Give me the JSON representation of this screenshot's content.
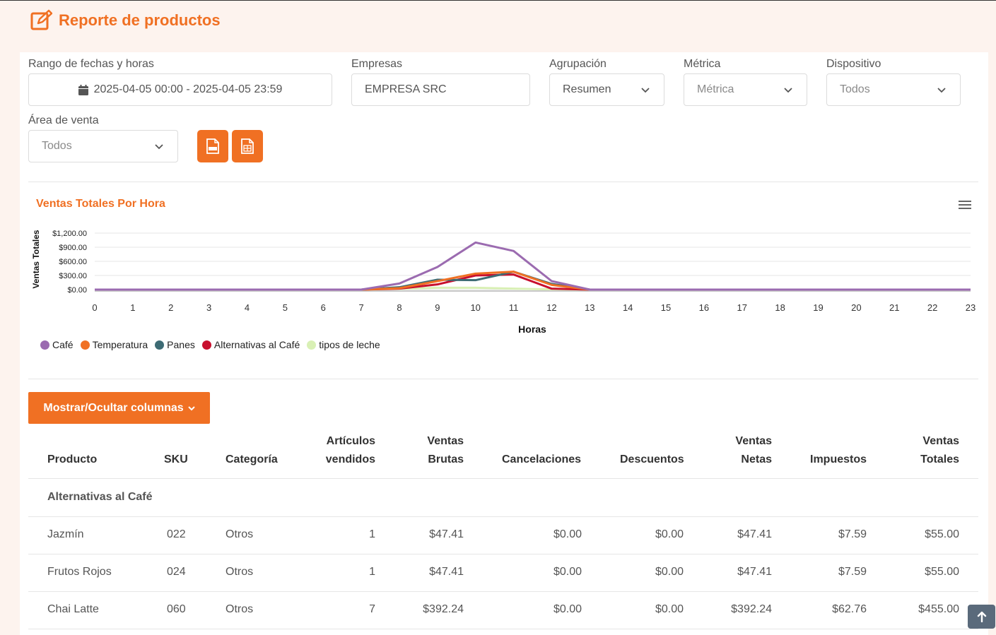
{
  "header": {
    "title": "Reporte de productos",
    "icon": "edit-icon"
  },
  "filters": {
    "date_range": {
      "label": "Rango de fechas y horas",
      "value": "2025-04-05 00:00 - 2025-04-05 23:59"
    },
    "empresas": {
      "label": "Empresas",
      "value": "EMPRESA SRC"
    },
    "agrupacion": {
      "label": "Agrupación",
      "value": "Resumen"
    },
    "metrica": {
      "label": "Métrica",
      "placeholder": "Métrica"
    },
    "dispositivo": {
      "label": "Dispositivo",
      "value": "Todos"
    },
    "area_venta": {
      "label": "Área de venta",
      "value": "Todos"
    }
  },
  "export_buttons": [
    {
      "icon": "pdf-file-icon"
    },
    {
      "icon": "excel-file-icon"
    }
  ],
  "chart": {
    "menu_icon": "hamburger-menu-icon"
  },
  "chart_data": {
    "type": "line",
    "title": "Ventas Totales Por Hora",
    "xlabel": "Horas",
    "ylabel": "Ventas Totales",
    "x": [
      0,
      1,
      2,
      3,
      4,
      5,
      6,
      7,
      8,
      9,
      10,
      11,
      12,
      13,
      14,
      15,
      16,
      17,
      18,
      19,
      20,
      21,
      22,
      23
    ],
    "y_ticks": [
      "$0.00",
      "$300.00",
      "$600.00",
      "$900.00",
      "$1,200.00"
    ],
    "ylim": [
      0,
      1200
    ],
    "grid": true,
    "legend_position": "bottom-left",
    "series": [
      {
        "name": "Café",
        "color": "#9b6bb0",
        "values": [
          0,
          0,
          0,
          0,
          0,
          0,
          0,
          0,
          130,
          480,
          1000,
          820,
          180,
          0,
          0,
          0,
          0,
          0,
          0,
          0,
          0,
          0,
          0,
          0
        ]
      },
      {
        "name": "Temperatura",
        "color": "#f07023",
        "values": [
          0,
          0,
          0,
          0,
          0,
          0,
          0,
          0,
          30,
          180,
          340,
          380,
          100,
          0,
          0,
          0,
          0,
          0,
          0,
          0,
          0,
          0,
          0,
          0
        ]
      },
      {
        "name": "Panes",
        "color": "#3d6b74",
        "values": [
          0,
          0,
          0,
          0,
          0,
          0,
          0,
          0,
          50,
          210,
          200,
          380,
          120,
          0,
          0,
          0,
          0,
          0,
          0,
          0,
          0,
          0,
          0,
          0
        ]
      },
      {
        "name": "Alternativas al Café",
        "color": "#c8102e",
        "values": [
          0,
          0,
          0,
          0,
          0,
          0,
          0,
          0,
          20,
          110,
          300,
          320,
          20,
          0,
          0,
          0,
          0,
          0,
          0,
          0,
          0,
          0,
          0,
          0
        ]
      },
      {
        "name": "tipos de leche",
        "color": "#d9f0b5",
        "values": [
          0,
          0,
          0,
          0,
          0,
          0,
          0,
          0,
          15,
          40,
          40,
          20,
          5,
          0,
          0,
          0,
          0,
          0,
          0,
          0,
          0,
          0,
          0,
          0
        ]
      }
    ]
  },
  "columns_toggle": {
    "label": "Mostrar/Ocultar columnas"
  },
  "table": {
    "headers": {
      "producto": "Producto",
      "sku": "SKU",
      "categoria": "Categoría",
      "articulos_1": "Artículos",
      "articulos_2": "vendidos",
      "brutas_1": "Ventas",
      "brutas_2": "Brutas",
      "cancelaciones": "Cancelaciones",
      "descuentos": "Descuentos",
      "netas_1": "Ventas",
      "netas_2": "Netas",
      "impuestos": "Impuestos",
      "totales_1": "Ventas",
      "totales_2": "Totales"
    },
    "group": "Alternativas al Café",
    "rows": [
      {
        "producto": "Jazmín",
        "sku": "022",
        "categoria": "Otros",
        "articulos": "1",
        "brutas": "$47.41",
        "cancelaciones": "$0.00",
        "descuentos": "$0.00",
        "netas": "$47.41",
        "impuestos": "$7.59",
        "totales": "$55.00"
      },
      {
        "producto": "Frutos Rojos",
        "sku": "024",
        "categoria": "Otros",
        "articulos": "1",
        "brutas": "$47.41",
        "cancelaciones": "$0.00",
        "descuentos": "$0.00",
        "netas": "$47.41",
        "impuestos": "$7.59",
        "totales": "$55.00"
      },
      {
        "producto": "Chai Latte",
        "sku": "060",
        "categoria": "Otros",
        "articulos": "7",
        "brutas": "$392.24",
        "cancelaciones": "$0.00",
        "descuentos": "$0.00",
        "netas": "$392.24",
        "impuestos": "$62.76",
        "totales": "$455.00"
      }
    ]
  },
  "scroll_top": {
    "icon": "arrow-up-icon"
  }
}
